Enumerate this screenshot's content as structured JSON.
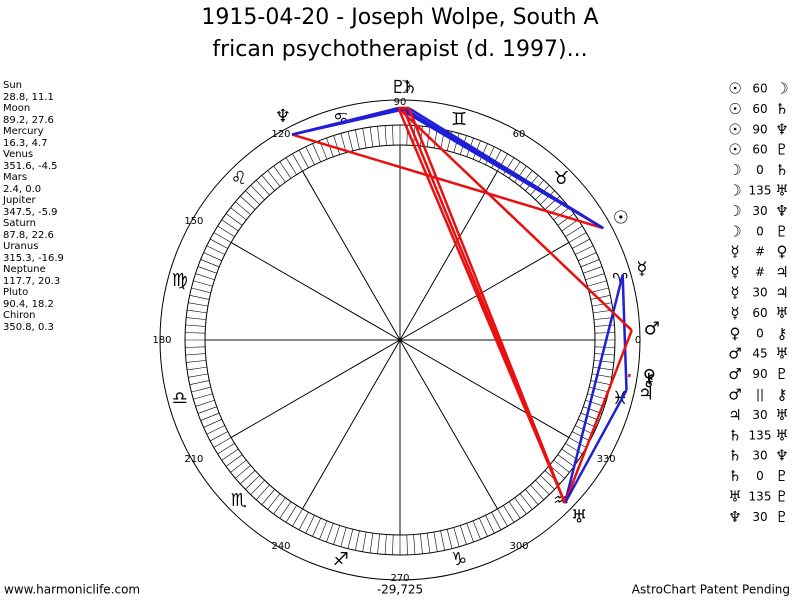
{
  "header": {
    "title_lines": [
      "1915-04-20 - Joseph Wolpe, South A",
      "frican psychotherapist (d. 1997)..."
    ]
  },
  "planets": [
    {
      "name": "Sun",
      "glyph": "☉",
      "position": "28.8, 11.1"
    },
    {
      "name": "Moon",
      "glyph": "☽",
      "position": "89.2, 27.6"
    },
    {
      "name": "Mercury",
      "glyph": "☿",
      "position": "16.3, 4.7"
    },
    {
      "name": "Venus",
      "glyph": "♀",
      "position": "351.6, -4.5"
    },
    {
      "name": "Mars",
      "glyph": "♂",
      "position": "2.4, 0.0"
    },
    {
      "name": "Jupiter",
      "glyph": "♃",
      "position": "347.5, -5.9"
    },
    {
      "name": "Saturn",
      "glyph": "♄",
      "position": "87.8, 22.6"
    },
    {
      "name": "Uranus",
      "glyph": "♅",
      "position": "315.3, -16.9"
    },
    {
      "name": "Neptune",
      "glyph": "♆",
      "position": "117.7, 20.3"
    },
    {
      "name": "Pluto",
      "glyph": "♇",
      "position": "90.4, 18.2"
    },
    {
      "name": "Chiron",
      "glyph": "⚷",
      "position": "350.8, 0.3"
    }
  ],
  "aspects": [
    {
      "from": "☉",
      "aspect": "60",
      "to": "☽",
      "color": "#1f1fd6"
    },
    {
      "from": "☉",
      "aspect": "60",
      "to": "♄",
      "color": "#1f1fd6"
    },
    {
      "from": "☉",
      "aspect": "90",
      "to": "♆",
      "color": "#e81010"
    },
    {
      "from": "☉",
      "aspect": "60",
      "to": "♇",
      "color": "#1f1fd6"
    },
    {
      "from": "☽",
      "aspect": "0",
      "to": "♄",
      "color": "#e81010"
    },
    {
      "from": "☽",
      "aspect": "135",
      "to": "♅",
      "color": "#e81010"
    },
    {
      "from": "☽",
      "aspect": "30",
      "to": "♆",
      "color": "#1f1fd6"
    },
    {
      "from": "☽",
      "aspect": "0",
      "to": "♇",
      "color": "#e81010"
    },
    {
      "from": "☿",
      "aspect": "#",
      "to": "♀",
      "color": "#e8a010"
    },
    {
      "from": "☿",
      "aspect": "#",
      "to": "♃",
      "color": "#e8a010"
    },
    {
      "from": "☿",
      "aspect": "30",
      "to": "♃",
      "color": "#1f1fd6"
    },
    {
      "from": "☿",
      "aspect": "60",
      "to": "♅",
      "color": "#1f1fd6"
    },
    {
      "from": "♀",
      "aspect": "0",
      "to": "⚷",
      "color": "#e81010"
    },
    {
      "from": "♂",
      "aspect": "45",
      "to": "♅",
      "color": "#e81010"
    },
    {
      "from": "♂",
      "aspect": "90",
      "to": "♇",
      "color": "#e81010"
    },
    {
      "from": "♂",
      "aspect": "||",
      "to": "⚷",
      "color": "#e8a010"
    },
    {
      "from": "♃",
      "aspect": "30",
      "to": "♅",
      "color": "#1f1fd6"
    },
    {
      "from": "♄",
      "aspect": "135",
      "to": "♅",
      "color": "#e81010"
    },
    {
      "from": "♄",
      "aspect": "30",
      "to": "♆",
      "color": "#1f1fd6"
    },
    {
      "from": "♄",
      "aspect": "0",
      "to": "♇",
      "color": "#e81010"
    },
    {
      "from": "♅",
      "aspect": "135",
      "to": "♇",
      "color": "#e81010"
    },
    {
      "from": "♆",
      "aspect": "30",
      "to": "♇",
      "color": "#1f1fd6"
    }
  ],
  "signs": [
    "♈",
    "♉",
    "♊",
    "♋",
    "♌",
    "♍",
    "♎",
    "♏",
    "♐",
    "♑",
    "♒",
    "♓"
  ],
  "degree_labels": [
    0,
    60,
    90,
    120,
    150,
    180,
    210,
    240,
    270,
    300,
    330
  ],
  "footer": {
    "site": "www.harmoniclife.com",
    "code": "-29,725",
    "notice": "AstroChart Patent Pending"
  }
}
